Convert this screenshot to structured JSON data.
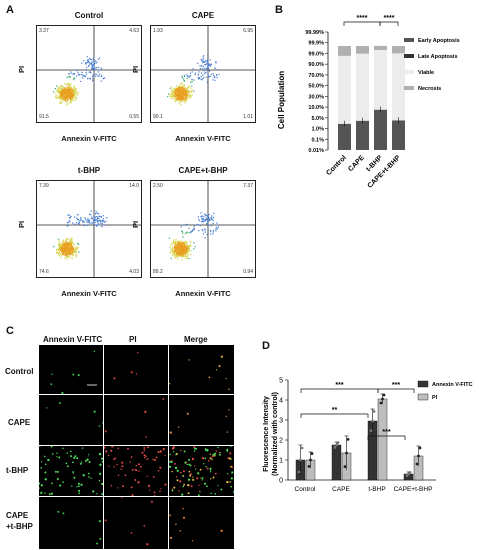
{
  "panel_labels": {
    "a": "A",
    "b": "B",
    "c": "C",
    "d": "D"
  },
  "flow": {
    "xlabel": "Annexin V-FITC",
    "ylabel": "PI",
    "plots": [
      {
        "title": "Control",
        "q1": "3.37",
        "q2": "4.63",
        "q3": "91.5",
        "q4": "0.55"
      },
      {
        "title": "CAPE",
        "q1": "1.93",
        "q2": "6.95",
        "q3": "90.1",
        "q4": "1.01"
      },
      {
        "title": "t-BHP",
        "q1": "7.39",
        "q2": "14.0",
        "q3": "74.6",
        "q4": "4.03"
      },
      {
        "title": "CAPE+t-BHP",
        "q1": "2.50",
        "q2": "7.37",
        "q3": "89.2",
        "q4": "0.94"
      }
    ]
  },
  "microscopy": {
    "columns": [
      "Annexin V-FITC",
      "PI",
      "Merge"
    ],
    "rows": [
      "Control",
      "CAPE",
      "t-BHP",
      "CAPE +t-BHP"
    ]
  },
  "colors": {
    "dark": "#444444",
    "medium": "#9a9a9a",
    "light": "#e6e6e6",
    "light2": "#b9b9b9",
    "bar_dark": "#333333",
    "bar_light": "#bdbdbd"
  },
  "chart_data": [
    {
      "type": "bar",
      "stacked": true,
      "categories": [
        "Control",
        "CAPE",
        "t-BHP",
        "CAPE+t-BHP"
      ],
      "ylabel": "Cell Population",
      "y_ticks": [
        "0.01%",
        "0.1%",
        "1.0%",
        "5.0%",
        "10.0%",
        "30.0%",
        "50.0%",
        "70.0%",
        "90.0%",
        "99.0%",
        "99.9%",
        "99.99%"
      ],
      "significance": [
        "****",
        "****"
      ],
      "series": [
        {
          "name": "Early Apoptosis",
          "values": [
            0.55,
            1.01,
            4.03,
            0.94
          ]
        },
        {
          "name": "Late Apoptosis",
          "values": [
            4.63,
            6.95,
            14.0,
            7.37
          ]
        },
        {
          "name": "Viable",
          "values": [
            91.5,
            90.1,
            74.6,
            89.2
          ]
        },
        {
          "name": "Necrosis",
          "values": [
            3.37,
            1.93,
            7.39,
            2.5
          ]
        }
      ]
    },
    {
      "type": "bar",
      "categories": [
        "Control",
        "CAPE",
        "t-BHP",
        "CAPE+t-BHP"
      ],
      "ylabel": "Fluorescence Intensity (Normalized with control)",
      "ylim": [
        0,
        5
      ],
      "y_ticks": [
        0,
        1,
        2,
        3,
        4,
        5
      ],
      "significance": [
        "**",
        "***",
        "***",
        "***"
      ],
      "series": [
        {
          "name": "Annexin V-FITC",
          "values": [
            1.0,
            1.75,
            2.95,
            0.3
          ],
          "errors": [
            0.75,
            0.15,
            0.6,
            0.1
          ]
        },
        {
          "name": "PI",
          "values": [
            1.0,
            1.35,
            4.05,
            1.2
          ],
          "errors": [
            0.4,
            0.85,
            0.25,
            0.5
          ]
        }
      ]
    }
  ]
}
